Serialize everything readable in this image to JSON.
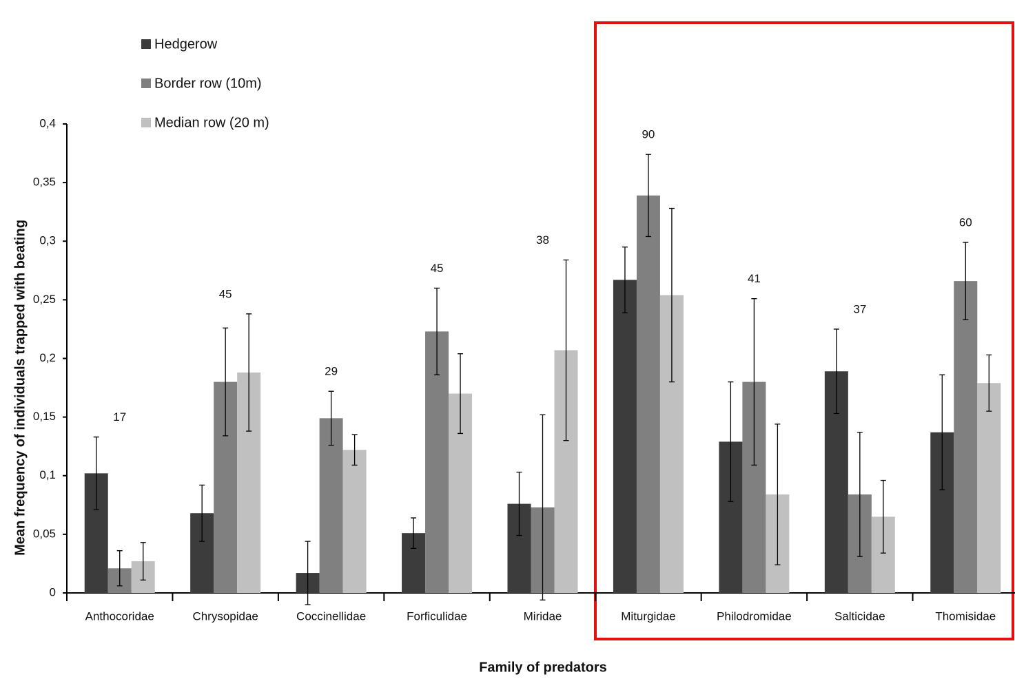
{
  "chart_data": {
    "type": "bar",
    "y_label": "Mean frequency of individuals trapped with beating",
    "x_label": "Family of predators",
    "categories": [
      "Anthocoridae",
      "Chrysopidae",
      "Coccinellidae",
      "Forficulidae",
      "Miridae",
      "Miturgidae",
      "Philodromidae",
      "Salticidae",
      "Thomisidae"
    ],
    "counts": [
      17,
      45,
      29,
      45,
      38,
      90,
      41,
      37,
      60
    ],
    "series": [
      {
        "name": "Hedgerow",
        "color": "#3c3c3c",
        "values": [
          0.102,
          0.068,
          0.017,
          0.051,
          0.076,
          0.267,
          0.129,
          0.189,
          0.137
        ],
        "errors": [
          0.031,
          0.024,
          0.027,
          0.013,
          0.027,
          0.028,
          0.051,
          0.036,
          0.049
        ]
      },
      {
        "name": "Border row (10m)",
        "color": "#808080",
        "values": [
          0.021,
          0.18,
          0.149,
          0.223,
          0.073,
          0.339,
          0.18,
          0.084,
          0.266
        ],
        "errors": [
          0.015,
          0.046,
          0.023,
          0.037,
          0.079,
          0.035,
          0.071,
          0.053,
          0.033
        ]
      },
      {
        "name": "Median row (20 m)",
        "color": "#c0c0c0",
        "values": [
          0.027,
          0.188,
          0.122,
          0.17,
          0.207,
          0.254,
          0.084,
          0.065,
          0.179
        ],
        "errors": [
          0.016,
          0.05,
          0.013,
          0.034,
          0.077,
          0.074,
          0.06,
          0.031,
          0.024
        ]
      }
    ],
    "ylim": [
      0,
      0.4
    ],
    "yticks": [
      0,
      {
        "value": 0.05,
        "label": "0,05"
      },
      {
        "value": 0.1,
        "label": "0,1"
      },
      {
        "value": 0.15,
        "label": "0,15"
      },
      {
        "value": 0.2,
        "label": "0,2"
      },
      {
        "value": 0.25,
        "label": "0,25"
      },
      {
        "value": 0.3,
        "label": "0,3"
      },
      {
        "value": 0.35,
        "label": "0,35"
      },
      {
        "value": 0.4,
        "label": "0,4"
      }
    ],
    "grid": false,
    "legend": "top-left"
  }
}
